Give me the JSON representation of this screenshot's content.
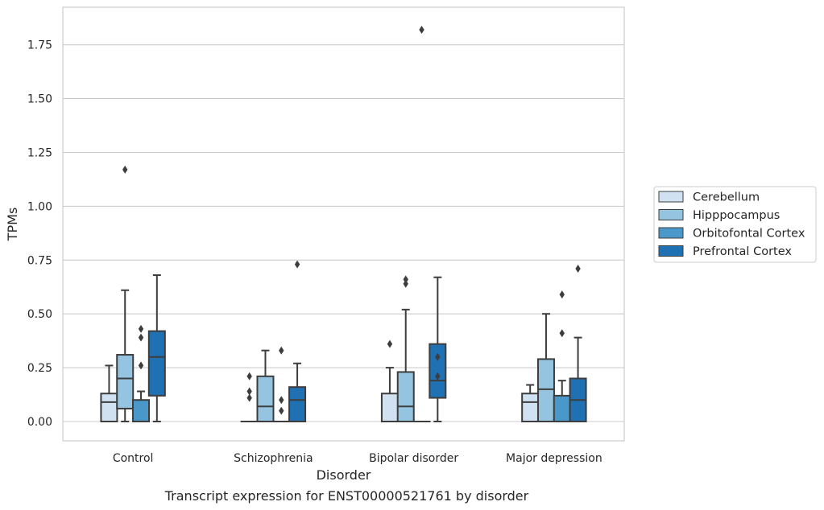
{
  "chart_data": {
    "type": "box",
    "title": "",
    "caption": "Transcript expression for ENST00000521761 by disorder",
    "xlabel": "Disorder",
    "ylabel": "TPMs",
    "ylim": [
      -0.09,
      1.91
    ],
    "yticks": [
      "0.00",
      "0.25",
      "0.50",
      "0.75",
      "1.00",
      "1.25",
      "1.50",
      "1.75"
    ],
    "grid": "horizontal",
    "legend_position": "right",
    "categories": [
      "Control",
      "Schizophrenia",
      "Bipolar disorder",
      "Major depression"
    ],
    "series": [
      {
        "name": "Cerebellum",
        "color": "#d0e1f2",
        "boxes": [
          {
            "min": 0.0,
            "q1": 0.0,
            "median": 0.09,
            "q3": 0.13,
            "max": 0.26,
            "outliers": []
          },
          {
            "min": 0.0,
            "q1": 0.0,
            "median": 0.0,
            "q3": 0.0,
            "max": 0.0,
            "outliers": [
              0.21,
              0.14,
              0.11
            ]
          },
          {
            "min": 0.0,
            "q1": 0.0,
            "median": 0.0,
            "q3": 0.13,
            "max": 0.25,
            "outliers": [
              0.36
            ]
          },
          {
            "min": 0.0,
            "q1": 0.0,
            "median": 0.09,
            "q3": 0.13,
            "max": 0.17,
            "outliers": []
          }
        ]
      },
      {
        "name": "Hipppocampus",
        "color": "#94c4df",
        "boxes": [
          {
            "min": 0.0,
            "q1": 0.06,
            "median": 0.2,
            "q3": 0.31,
            "max": 0.61,
            "outliers": [
              1.17
            ]
          },
          {
            "min": 0.0,
            "q1": 0.0,
            "median": 0.07,
            "q3": 0.21,
            "max": 0.33,
            "outliers": []
          },
          {
            "min": 0.0,
            "q1": 0.0,
            "median": 0.07,
            "q3": 0.23,
            "max": 0.52,
            "outliers": [
              0.66,
              0.64
            ]
          },
          {
            "min": 0.0,
            "q1": 0.0,
            "median": 0.15,
            "q3": 0.29,
            "max": 0.5,
            "outliers": []
          }
        ]
      },
      {
        "name": "Orbitofontal Cortex",
        "color": "#4a98c9",
        "boxes": [
          {
            "min": 0.0,
            "q1": 0.0,
            "median": 0.0,
            "q3": 0.1,
            "max": 0.14,
            "outliers": [
              0.43,
              0.39,
              0.26
            ]
          },
          {
            "min": 0.0,
            "q1": 0.0,
            "median": 0.0,
            "q3": 0.0,
            "max": 0.0,
            "outliers": [
              0.33,
              0.1,
              0.05
            ]
          },
          {
            "min": 0.0,
            "q1": 0.0,
            "median": 0.0,
            "q3": 0.0,
            "max": 0.0,
            "outliers": [
              1.82
            ]
          },
          {
            "min": 0.0,
            "q1": 0.0,
            "median": 0.0,
            "q3": 0.12,
            "max": 0.19,
            "outliers": [
              0.59,
              0.41
            ]
          }
        ]
      },
      {
        "name": "Prefrontal Cortex",
        "color": "#2070b4",
        "boxes": [
          {
            "min": 0.0,
            "q1": 0.12,
            "median": 0.3,
            "q3": 0.42,
            "max": 0.68,
            "outliers": []
          },
          {
            "min": 0.0,
            "q1": 0.0,
            "median": 0.1,
            "q3": 0.16,
            "max": 0.27,
            "outliers": [
              0.73
            ]
          },
          {
            "min": 0.0,
            "q1": 0.11,
            "median": 0.19,
            "q3": 0.36,
            "max": 0.67,
            "outliers": [
              0.3,
              0.21
            ]
          },
          {
            "min": 0.0,
            "q1": 0.0,
            "median": 0.1,
            "q3": 0.2,
            "max": 0.39,
            "outliers": [
              0.71
            ]
          }
        ]
      }
    ],
    "colors": {
      "grid": "#cccccc",
      "frame": "#cccccc",
      "line": "#3d3d3d",
      "text": "#262626"
    }
  }
}
